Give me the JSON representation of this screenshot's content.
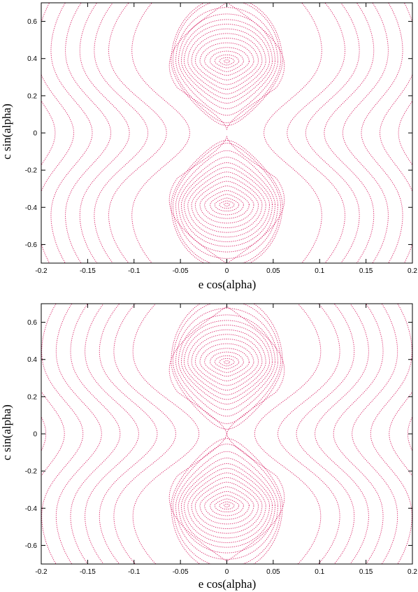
{
  "chart_data": [
    {
      "type": "line",
      "subtype": "phase-portrait",
      "xlabel": "e cos(alpha)",
      "ylabel": "c sin(alpha)",
      "xlim": [
        -0.2,
        0.2
      ],
      "ylim": [
        -0.7,
        0.7
      ],
      "xticks": [
        "-0.2",
        "-0.15",
        "-0.1",
        "-0.05",
        "0",
        "0.05",
        "0.1",
        "0.15",
        "0.2"
      ],
      "yticks": [
        "0.6",
        "0.4",
        "0.2",
        "0",
        "-0.2",
        "-0.4",
        "-0.6"
      ],
      "color": "#d6125a",
      "separatrix_gap": 0.035,
      "island_centers": [
        [
          0,
          0.385
        ],
        [
          0,
          -0.385
        ]
      ],
      "island_contours": [
        {
          "hx": 0.003,
          "ry": 0.008
        },
        {
          "hx": 0.008,
          "ry": 0.02
        },
        {
          "hx": 0.013,
          "ry": 0.035
        },
        {
          "hx": 0.018,
          "ry": 0.055
        },
        {
          "hx": 0.024,
          "ry": 0.075
        },
        {
          "hx": 0.029,
          "ry": 0.1
        },
        {
          "hx": 0.034,
          "ry": 0.125
        },
        {
          "hx": 0.038,
          "ry": 0.15
        },
        {
          "hx": 0.042,
          "ry": 0.175
        },
        {
          "hx": 0.046,
          "ry": 0.2
        },
        {
          "hx": 0.049,
          "ry": 0.225
        },
        {
          "hx": 0.052,
          "ry": 0.255
        },
        {
          "hx": 0.055,
          "ry": 0.29
        },
        {
          "hx": 0.058,
          "ry": 0.33
        },
        {
          "hx": 0.06,
          "ry": 0.345
        }
      ],
      "circulating_curves": [
        {
          "x0": 0.04,
          "bulge": 0.07
        },
        {
          "x0": 0.065,
          "bulge": 0.07
        },
        {
          "x0": 0.085,
          "bulge": 0.065
        },
        {
          "x0": 0.105,
          "bulge": 0.06
        },
        {
          "x0": 0.125,
          "bulge": 0.055
        },
        {
          "x0": 0.145,
          "bulge": 0.05
        },
        {
          "x0": 0.165,
          "bulge": 0.045
        },
        {
          "x0": 0.185,
          "bulge": 0.04
        },
        {
          "x0": 0.205,
          "bulge": 0.035
        },
        {
          "x0": 0.225,
          "bulge": 0.03
        }
      ]
    },
    {
      "type": "line",
      "subtype": "phase-portrait",
      "xlabel": "e cos(alpha)",
      "ylabel": "c sin(alpha)",
      "xlim": [
        -0.2,
        0.2
      ],
      "ylim": [
        -0.7,
        0.7
      ],
      "xticks": [
        "-0.2",
        "-0.15",
        "-0.1",
        "-0.05",
        "0",
        "0.05",
        "0.1",
        "0.15",
        "0.2"
      ],
      "yticks": [
        "0.6",
        "0.4",
        "0.2",
        "0",
        "-0.2",
        "-0.4",
        "-0.6"
      ],
      "color": "#d6125a",
      "separatrix_gap": 0.0,
      "island_centers": [
        [
          0,
          0.385
        ],
        [
          0,
          -0.385
        ]
      ],
      "island_contours": [
        {
          "hx": 0.003,
          "ry": 0.008
        },
        {
          "hx": 0.008,
          "ry": 0.02
        },
        {
          "hx": 0.013,
          "ry": 0.035
        },
        {
          "hx": 0.018,
          "ry": 0.055
        },
        {
          "hx": 0.024,
          "ry": 0.075
        },
        {
          "hx": 0.029,
          "ry": 0.1
        },
        {
          "hx": 0.034,
          "ry": 0.125
        },
        {
          "hx": 0.038,
          "ry": 0.15
        },
        {
          "hx": 0.042,
          "ry": 0.175
        },
        {
          "hx": 0.046,
          "ry": 0.2
        },
        {
          "hx": 0.049,
          "ry": 0.225
        },
        {
          "hx": 0.052,
          "ry": 0.255
        },
        {
          "hx": 0.055,
          "ry": 0.29
        },
        {
          "hx": 0.058,
          "ry": 0.33
        },
        {
          "hx": 0.06,
          "ry": 0.36
        }
      ],
      "circulating_curves": [
        {
          "x0": 0.03,
          "bulge": 0.08
        },
        {
          "x0": 0.055,
          "bulge": 0.075
        },
        {
          "x0": 0.075,
          "bulge": 0.07
        },
        {
          "x0": 0.095,
          "bulge": 0.065
        },
        {
          "x0": 0.115,
          "bulge": 0.06
        },
        {
          "x0": 0.135,
          "bulge": 0.055
        },
        {
          "x0": 0.155,
          "bulge": 0.05
        },
        {
          "x0": 0.175,
          "bulge": 0.045
        },
        {
          "x0": 0.195,
          "bulge": 0.04
        },
        {
          "x0": 0.215,
          "bulge": 0.035
        }
      ]
    }
  ]
}
